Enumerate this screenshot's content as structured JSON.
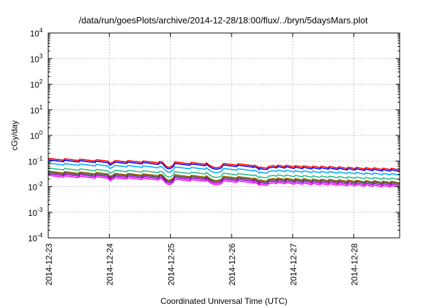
{
  "chart_data": {
    "type": "line",
    "title": "/data/run/goesPlots/archive/2014-12-28/18:00/flux/../bryn/5daysMars.plot",
    "xlabel": "Coordinated Universal Time (UTC)",
    "ylabel": "cGy/day",
    "yscale": "log",
    "ylim": [
      0.0001,
      10000
    ],
    "xlim": [
      "2014-12-23",
      "2014-12-28T18:00"
    ],
    "grid": true,
    "x_ticks": [
      "2014-12-23",
      "2014-12-24",
      "2014-12-25",
      "2014-12-26",
      "2014-12-27",
      "2014-12-28"
    ],
    "y_ticks": [
      {
        "value": 0.0001,
        "base": "10",
        "exp": "-4"
      },
      {
        "value": 0.001,
        "base": "10",
        "exp": "-3"
      },
      {
        "value": 0.01,
        "base": "10",
        "exp": "-2"
      },
      {
        "value": 0.1,
        "base": "10",
        "exp": "-1"
      },
      {
        "value": 1,
        "base": "10",
        "exp": "0"
      },
      {
        "value": 10,
        "base": "10",
        "exp": "1"
      },
      {
        "value": 100,
        "base": "10",
        "exp": "2"
      },
      {
        "value": 1000,
        "base": "10",
        "exp": "3"
      },
      {
        "value": 10000,
        "base": "10",
        "exp": "4"
      }
    ],
    "series": [
      {
        "color": "#ff0000",
        "start": 0.12,
        "end": 0.048
      },
      {
        "color": "#0000ff",
        "start": 0.105,
        "end": 0.042
      },
      {
        "color": "#00aaff",
        "start": 0.078,
        "end": 0.03
      },
      {
        "color": "#22bb88",
        "start": 0.05,
        "end": 0.02
      },
      {
        "color": "#996600",
        "start": 0.038,
        "end": 0.015
      },
      {
        "color": "#444444",
        "start": 0.034,
        "end": 0.0135
      },
      {
        "color": "#9900cc",
        "start": 0.03,
        "end": 0.0118
      },
      {
        "color": "#ff00ff",
        "start": 0.026,
        "end": 0.0102
      }
    ]
  }
}
